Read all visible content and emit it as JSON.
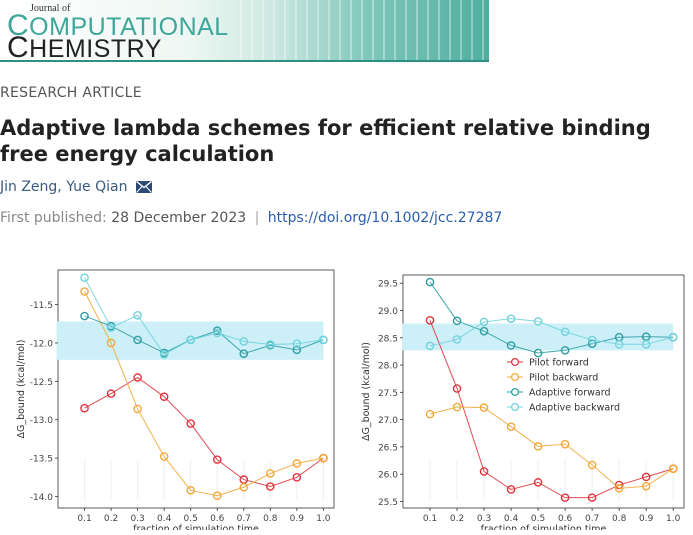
{
  "journal": {
    "of": "Journal of",
    "line1": "OMPUTATIONAL",
    "line1_initial": "C",
    "line2": "HEMISTRY",
    "line2_initial": "C"
  },
  "article": {
    "type_label": "RESEARCH ARTICLE",
    "title": "Adaptive lambda schemes for efficient relative binding free energy calculation",
    "authors": "Jin Zeng, Yue Qian",
    "first_published_label": "First published:",
    "first_published_date": "28 December 2023",
    "separator": "|",
    "doi": "https://doi.org/10.1002/jcc.27287"
  },
  "colors": {
    "pilot_forward": "#e0363f",
    "pilot_backward": "#f2a93b",
    "adaptive_forward": "#2f9ea2",
    "adaptive_backward": "#71d3db",
    "band": "#cdeff8",
    "accent_teal": "#3ea79a"
  },
  "chart_data": [
    {
      "type": "line",
      "x": [
        0.1,
        0.2,
        0.3,
        0.4,
        0.5,
        0.6,
        0.7,
        0.8,
        0.9,
        1.0
      ],
      "xlabel": "fraction of simulation time",
      "ylabel": "ΔG_bound (kcal/mol)",
      "ylim": [
        -14.15,
        -11.05
      ],
      "yticks": [
        -11.5,
        -12.0,
        -12.5,
        -13.0,
        -13.5,
        -14.0
      ],
      "ytick_labels": [
        "-11.5",
        "-12.0",
        "-12.5",
        "-13.0",
        "-13.5",
        "-14.0"
      ],
      "xticks": [
        "0.1",
        "0.2",
        "0.3",
        "0.4",
        "0.5",
        "0.6",
        "0.7",
        "0.8",
        "0.9",
        "1.0"
      ],
      "band": [
        -12.22,
        -11.72
      ],
      "series": [
        {
          "name": "Pilot forward",
          "values": [
            -12.85,
            -12.66,
            -12.45,
            -12.7,
            -13.05,
            -13.52,
            -13.78,
            -13.87,
            -13.75,
            -13.5
          ]
        },
        {
          "name": "Pilot backward",
          "values": [
            -11.33,
            -12.0,
            -12.86,
            -13.48,
            -13.92,
            -13.99,
            -13.88,
            -13.7,
            -13.57,
            -13.5
          ]
        },
        {
          "name": "Adaptive forward",
          "values": [
            -11.65,
            -11.78,
            -11.96,
            -12.13,
            -11.96,
            -11.84,
            -12.14,
            -12.03,
            -12.09,
            -11.96
          ]
        },
        {
          "name": "Adaptive backward",
          "values": [
            -11.15,
            -11.8,
            -11.64,
            -12.15,
            -11.96,
            -11.87,
            -11.98,
            -12.02,
            -12.01,
            -11.96
          ]
        }
      ]
    },
    {
      "type": "line",
      "x": [
        0.1,
        0.2,
        0.3,
        0.4,
        0.5,
        0.6,
        0.7,
        0.8,
        0.9,
        1.0
      ],
      "xlabel": "fraction of simulation time",
      "ylabel": "ΔG_bound (kcal/mol)",
      "ylim": [
        25.38,
        29.65
      ],
      "yticks": [
        29.5,
        29.0,
        28.5,
        28.0,
        27.5,
        27.0,
        26.5,
        26.0,
        25.5
      ],
      "ytick_labels": [
        "29.5",
        "29.0",
        "28.5",
        "28.0",
        "27.5",
        "27.0",
        "26.5",
        "26.0",
        "25.5"
      ],
      "xticks": [
        "0.1",
        "0.2",
        "0.3",
        "0.4",
        "0.5",
        "0.6",
        "0.7",
        "0.8",
        "0.9",
        "1.0"
      ],
      "band": [
        28.27,
        28.76
      ],
      "legend": "center-right",
      "series": [
        {
          "name": "Pilot forward",
          "values": [
            28.82,
            27.57,
            26.05,
            25.72,
            25.85,
            25.57,
            25.57,
            25.8,
            25.95,
            26.1
          ]
        },
        {
          "name": "Pilot backward",
          "values": [
            27.1,
            27.23,
            27.22,
            26.87,
            26.51,
            26.55,
            26.17,
            25.74,
            25.78,
            26.1
          ]
        },
        {
          "name": "Adaptive forward",
          "values": [
            29.52,
            28.81,
            28.62,
            28.36,
            28.22,
            28.27,
            28.39,
            28.51,
            28.52,
            28.51
          ]
        },
        {
          "name": "Adaptive backward",
          "values": [
            28.35,
            28.47,
            28.79,
            28.85,
            28.8,
            28.61,
            28.46,
            28.38,
            28.38,
            28.51
          ]
        }
      ]
    }
  ]
}
